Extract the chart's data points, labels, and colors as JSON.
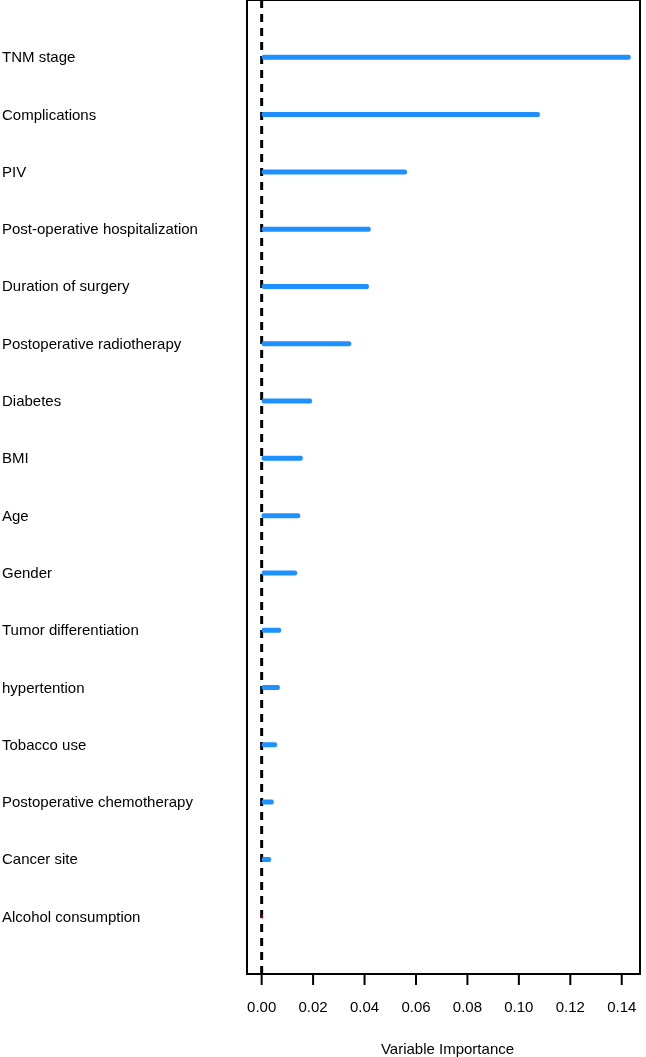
{
  "chart_data": {
    "type": "bar",
    "orientation": "horizontal",
    "xlabel": "Variable Importance",
    "categories": [
      "TNM stage",
      "Complications",
      "PIV",
      "Post-operative hospitalization",
      "Duration of surgery",
      "Postoperative radiotherapy",
      "Diabetes",
      "BMI",
      "Age",
      "Gender",
      "Tumor differentiation",
      "hypertention",
      "Tobacco use",
      "Postoperative chemotherapy",
      "Cancer site",
      "Alcohol consumption"
    ],
    "values": [
      0.1435,
      0.1082,
      0.0565,
      0.0424,
      0.0417,
      0.0348,
      0.0196,
      0.016,
      0.015,
      0.0138,
      0.0076,
      0.0071,
      0.006,
      0.0047,
      0.0037,
      0.0003
    ],
    "colors": [
      "#1e90ff",
      "#1e90ff",
      "#1e90ff",
      "#1e90ff",
      "#1e90ff",
      "#1e90ff",
      "#1e90ff",
      "#1e90ff",
      "#1e90ff",
      "#1e90ff",
      "#1e90ff",
      "#1e90ff",
      "#1e90ff",
      "#1e90ff",
      "#1e90ff",
      "#e0103a"
    ],
    "xlim": [
      -0.0057,
      0.1471
    ],
    "xticks": [
      {
        "value": 0,
        "label": "0.00"
      },
      {
        "value": 0.02,
        "label": "0.02"
      },
      {
        "value": 0.04,
        "label": "0.04"
      },
      {
        "value": 0.06,
        "label": "0.06"
      },
      {
        "value": 0.08,
        "label": "0.08"
      },
      {
        "value": 0.1,
        "label": "0.10"
      },
      {
        "value": 0.12,
        "label": "0.12"
      },
      {
        "value": 0.14,
        "label": "0.14"
      }
    ],
    "ref_lines": [
      {
        "axis": "x",
        "value": 0,
        "color": "#000000",
        "line_style": "dashed"
      }
    ]
  }
}
